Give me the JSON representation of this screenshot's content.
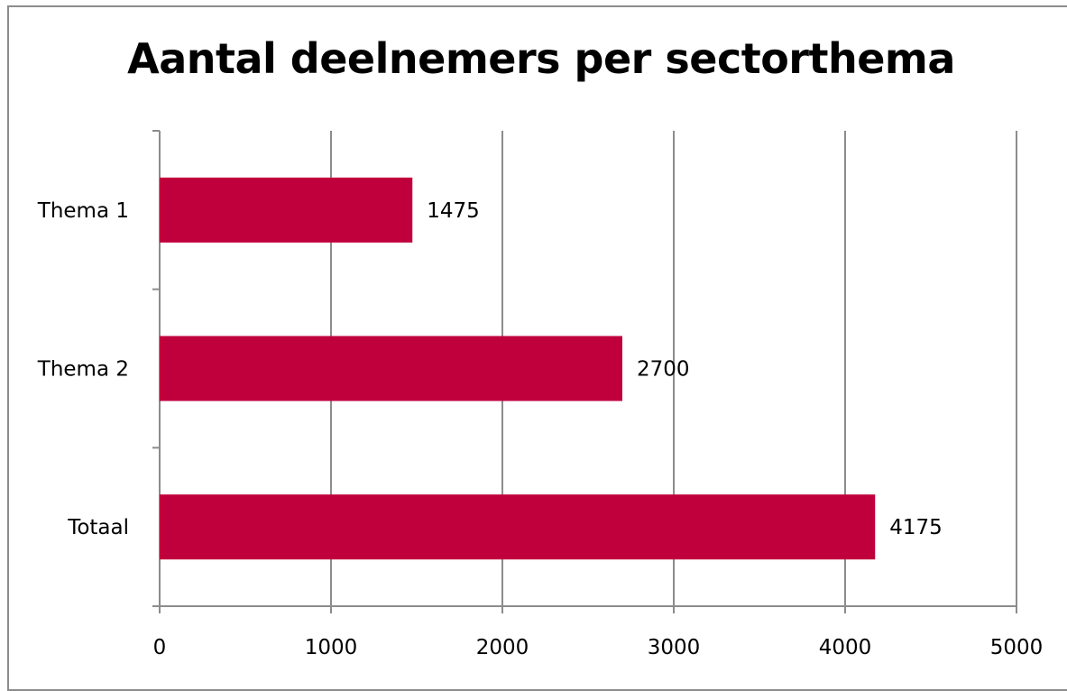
{
  "chart_data": {
    "type": "bar",
    "orientation": "horizontal",
    "title": "Aantal deelnemers per sectorthema",
    "categories": [
      "Thema 1",
      "Thema 2",
      "Totaal"
    ],
    "values": [
      1475,
      2700,
      4175
    ],
    "data_labels": [
      "1475",
      "2700",
      "4175"
    ],
    "xlabel": "",
    "ylabel": "",
    "xlim": [
      0,
      5000
    ],
    "x_ticks": [
      0,
      1000,
      2000,
      3000,
      4000,
      5000
    ],
    "x_tick_labels": [
      "0",
      "1000",
      "2000",
      "3000",
      "4000",
      "5000"
    ],
    "grid": true,
    "legend": "none",
    "bar_color": "#C0003C"
  }
}
